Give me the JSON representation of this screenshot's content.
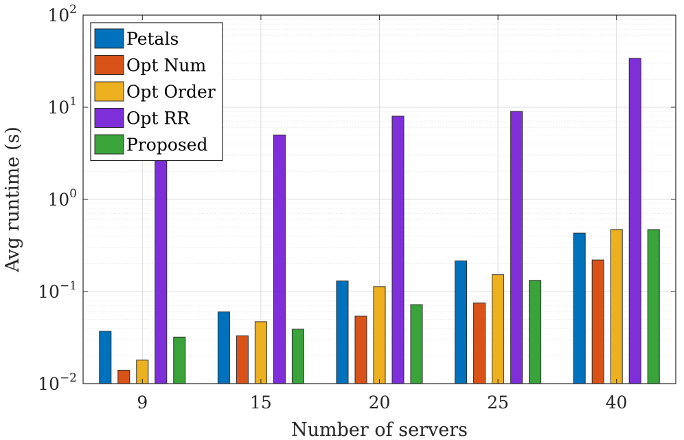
{
  "chart_data": {
    "type": "bar",
    "categories": [
      "9",
      "15",
      "20",
      "25",
      "40"
    ],
    "xlabel": "Number of servers",
    "ylabel": "Avg runtime (s)",
    "yscale": "log",
    "ylim": [
      0.01,
      100
    ],
    "yticks": [
      {
        "value": 0.01,
        "base": "10",
        "exp": "−2"
      },
      {
        "value": 0.1,
        "base": "10",
        "exp": "−1"
      },
      {
        "value": 1,
        "base": "10",
        "exp": "0"
      },
      {
        "value": 10,
        "base": "10",
        "exp": "1"
      },
      {
        "value": 100,
        "base": "10",
        "exp": "2"
      }
    ],
    "grid": true,
    "legend_position": "top-left",
    "series": [
      {
        "name": "Petals",
        "color": "#0072BD",
        "values": [
          0.037,
          0.06,
          0.13,
          0.215,
          0.43
        ]
      },
      {
        "name": "Opt Num",
        "color": "#D95319",
        "values": [
          0.014,
          0.033,
          0.054,
          0.075,
          0.22
        ]
      },
      {
        "name": "Opt Order",
        "color": "#EDB120",
        "values": [
          0.018,
          0.047,
          0.113,
          0.152,
          0.47
        ]
      },
      {
        "name": "Opt RR",
        "color": "#7E2FD9",
        "values": [
          2.8,
          5.0,
          8.0,
          9.0,
          34.0
        ]
      },
      {
        "name": "Proposed",
        "color": "#3AA33A",
        "values": [
          0.032,
          0.039,
          0.072,
          0.132,
          0.47
        ]
      }
    ]
  }
}
